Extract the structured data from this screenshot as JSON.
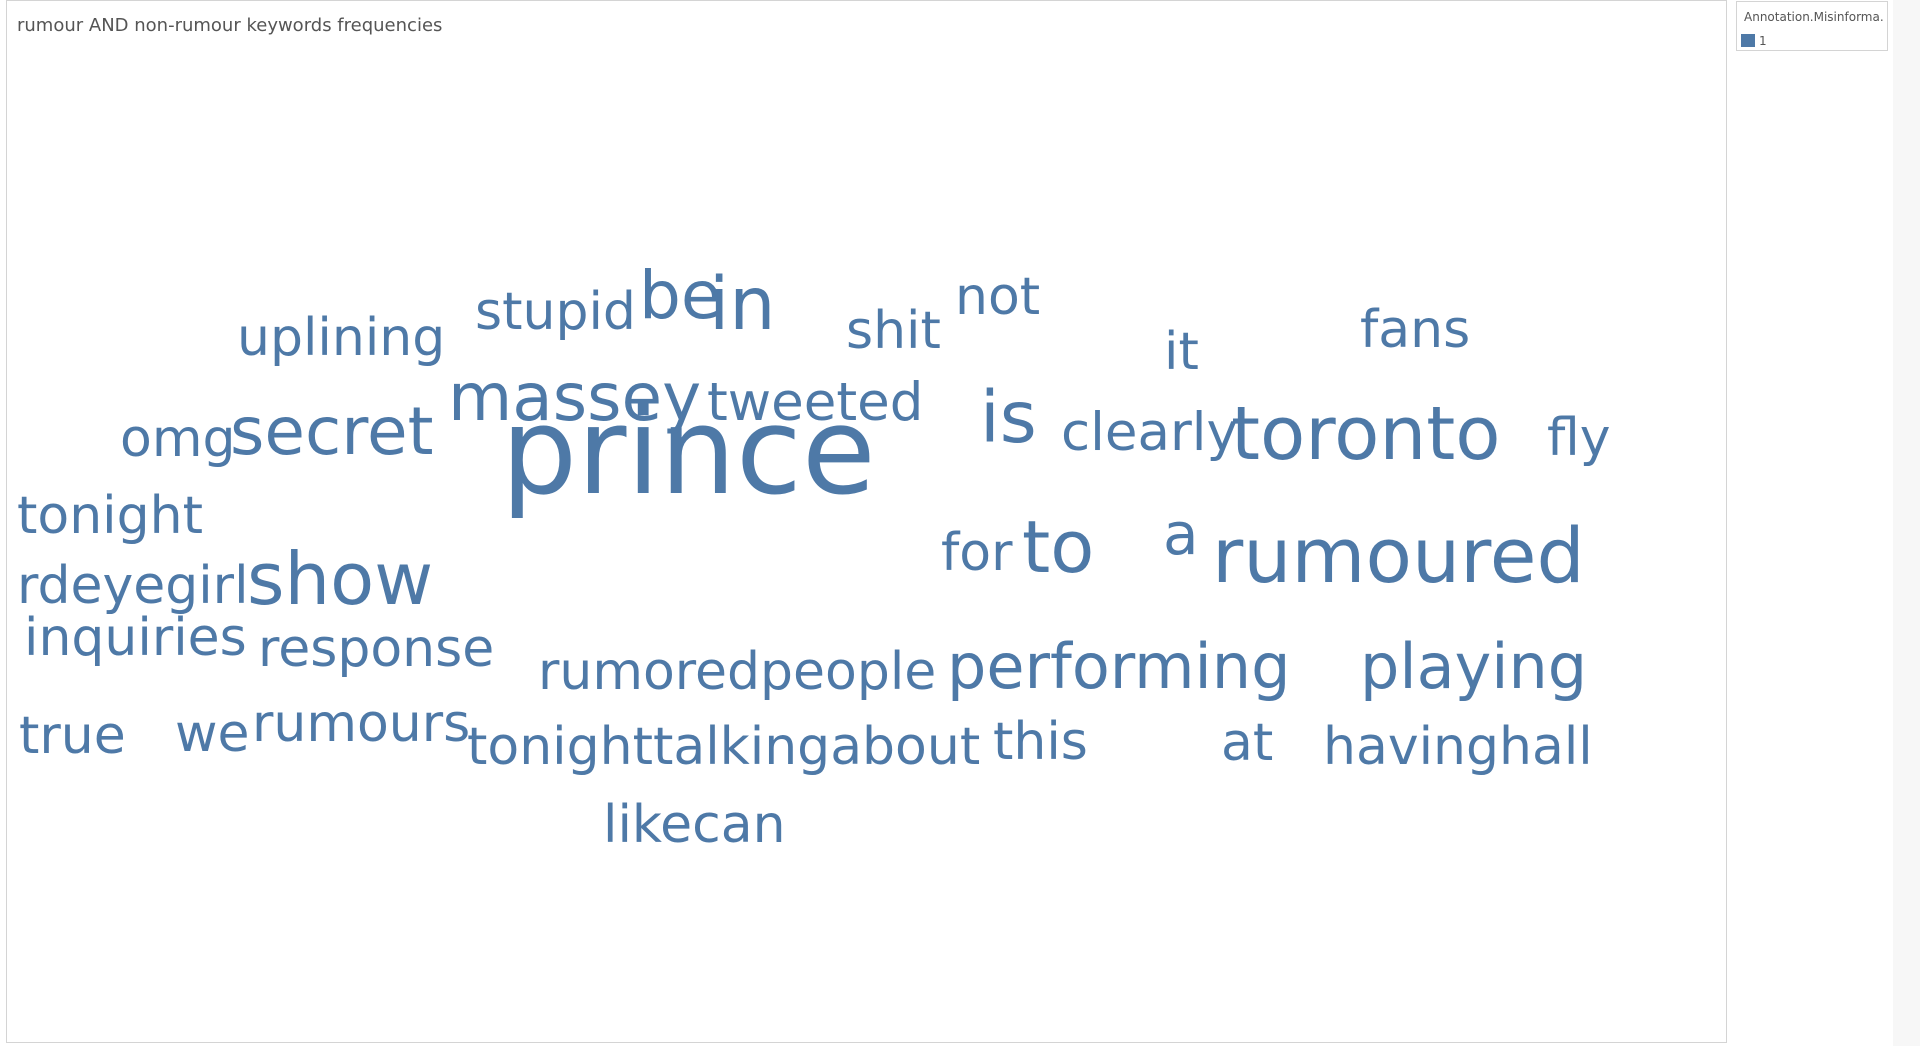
{
  "chart_data": {
    "type": "wordcloud",
    "title": "rumour AND non-rumour keywords frequencies",
    "color": "#4e79a7",
    "legend": {
      "title": "Annotation.Misinforma...",
      "placement": "top-right",
      "items": [
        {
          "label": "1",
          "color": "#4e79a7"
        }
      ]
    },
    "words": [
      {
        "text": "prince",
        "weight": 100
      },
      {
        "text": "rumoured",
        "weight": 63
      },
      {
        "text": "toronto",
        "weight": 62
      },
      {
        "text": "in",
        "weight": 61
      },
      {
        "text": "show",
        "weight": 60
      },
      {
        "text": "to",
        "weight": 60
      },
      {
        "text": "is",
        "weight": 59
      },
      {
        "text": "secret",
        "weight": 55
      },
      {
        "text": "massey",
        "weight": 55
      },
      {
        "text": "be",
        "weight": 55
      },
      {
        "text": "playing",
        "weight": 52
      },
      {
        "text": "performing",
        "weight": 52
      },
      {
        "text": "a",
        "weight": 48
      },
      {
        "text": "tweeted",
        "weight": 44
      },
      {
        "text": "clearly",
        "weight": 44
      },
      {
        "text": "fly",
        "weight": 43
      },
      {
        "text": "tonight",
        "weight": 43
      },
      {
        "text": "rdeyegirl",
        "weight": 43
      },
      {
        "text": "for",
        "weight": 43
      },
      {
        "text": "inquiries",
        "weight": 43
      },
      {
        "text": "response",
        "weight": 43
      },
      {
        "text": "rumored",
        "weight": 43
      },
      {
        "text": "people",
        "weight": 43
      },
      {
        "text": "rumours",
        "weight": 43
      },
      {
        "text": "tonighttalkingabout",
        "weight": 43
      },
      {
        "text": "likecan",
        "weight": 43
      },
      {
        "text": "uplining",
        "weight": 43
      },
      {
        "text": "stupid",
        "weight": 43
      },
      {
        "text": "shit",
        "weight": 43
      },
      {
        "text": "not",
        "weight": 43
      },
      {
        "text": "it",
        "weight": 43
      },
      {
        "text": "fans",
        "weight": 43
      },
      {
        "text": "omg",
        "weight": 43
      },
      {
        "text": "true",
        "weight": 43
      },
      {
        "text": "we",
        "weight": 43
      },
      {
        "text": "this",
        "weight": 43
      },
      {
        "text": "at",
        "weight": 43
      },
      {
        "text": "havinghall",
        "weight": 43
      }
    ]
  }
}
